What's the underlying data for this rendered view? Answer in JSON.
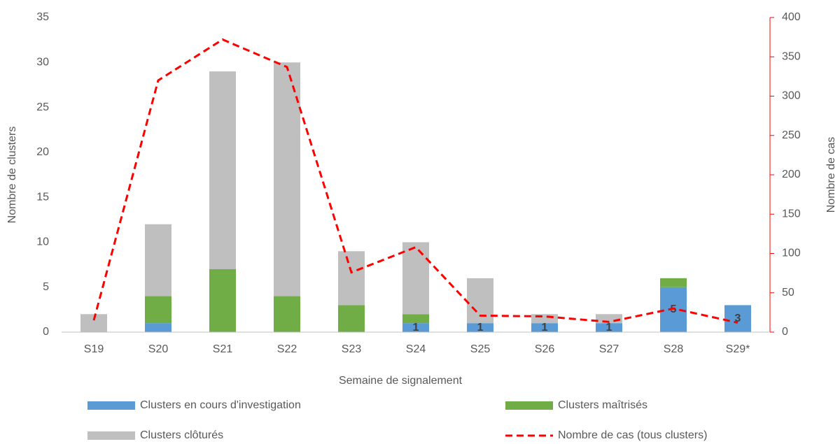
{
  "chart_data": {
    "type": "bar",
    "stacked": true,
    "x_label": "Semaine de signalement",
    "y_label": "Nombre de clusters",
    "y2_label": "Nombre de cas",
    "categories": [
      "S19",
      "S20",
      "S21",
      "S22",
      "S23",
      "S24",
      "S25",
      "S26",
      "S27",
      "S28",
      "S29*"
    ],
    "series": [
      {
        "name": "Clusters en cours d'investigation",
        "color": "#5b9bd5",
        "type": "bar",
        "values": [
          0,
          1,
          0,
          0,
          0,
          1,
          1,
          1,
          1,
          5,
          3
        ],
        "value_labels": [
          null,
          null,
          null,
          null,
          null,
          "1",
          "1",
          "1",
          "1",
          "5",
          "3"
        ]
      },
      {
        "name": "Clusters maîtrisés",
        "color": "#70ad47",
        "type": "bar",
        "values": [
          0,
          3,
          7,
          4,
          3,
          1,
          0,
          0,
          0,
          1,
          0
        ]
      },
      {
        "name": "Clusters clôturés",
        "color": "#bfbfbf",
        "type": "bar",
        "values": [
          2,
          8,
          22,
          26,
          6,
          8,
          5,
          1,
          1,
          0,
          0
        ]
      },
      {
        "name": "Nombre de cas (tous clusters)",
        "color": "#ff0000",
        "type": "line",
        "axis": "y2",
        "dashed": true,
        "values": [
          15,
          320,
          372,
          337,
          76,
          108,
          21,
          20,
          13,
          30,
          12
        ]
      }
    ],
    "ylim": [
      0,
      35
    ],
    "yticks": [
      0,
      5,
      10,
      15,
      20,
      25,
      30,
      35
    ],
    "y2lim": [
      0,
      400
    ],
    "y2ticks": [
      0,
      50,
      100,
      150,
      200,
      250,
      300,
      350,
      400
    ]
  }
}
